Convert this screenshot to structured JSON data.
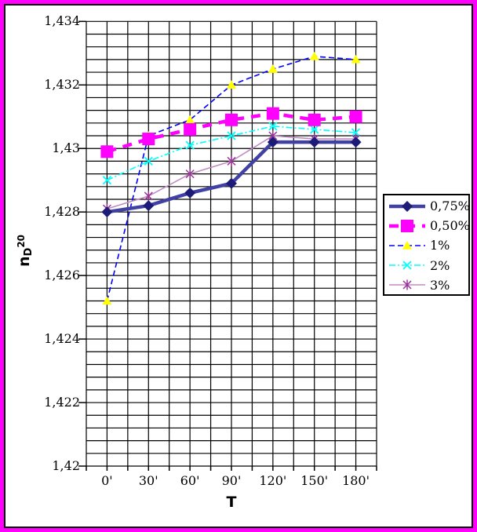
{
  "window": {
    "frame_color": "#FF00FF",
    "chart_background": "#FFFFFF",
    "chart_border_color": "#000000",
    "gridline_color": "#000000"
  },
  "y_axis": {
    "title": {
      "text": "nD20",
      "base": "n",
      "sub": "D",
      "sup": "20"
    },
    "tick_labels": [
      "1,434",
      "1,432",
      "1,43",
      "1,428",
      "1,426",
      "1,424",
      "1,422",
      "1,42"
    ]
  },
  "x_axis": {
    "title": "T",
    "tick_labels": [
      "0'",
      "30'",
      "60'",
      "90'",
      "120'",
      "150'",
      "180'"
    ]
  },
  "legend": {
    "position": "right",
    "entries": [
      "0,75%",
      "0,50%",
      "1%",
      "2%",
      "3%"
    ]
  },
  "chart_data": {
    "type": "line",
    "title": "",
    "xlabel": "T",
    "ylabel": "nD20",
    "categories": [
      "0'",
      "30'",
      "60'",
      "90'",
      "120'",
      "150'",
      "180'"
    ],
    "series": [
      {
        "name": "0,75%",
        "values": [
          1.428,
          1.4282,
          1.4286,
          1.4289,
          1.4302,
          1.4302,
          1.4302
        ],
        "color": "#4141A5",
        "marker_color": "#1C1C78",
        "marker": "diamond",
        "line": "solid-thick"
      },
      {
        "name": "0,50%",
        "values": [
          1.4299,
          1.4303,
          1.4306,
          1.4309,
          1.4311,
          1.4309,
          1.431
        ],
        "color": "#FF00FF",
        "marker_color": "#FF00FF",
        "marker": "square",
        "line": "dashed-thick"
      },
      {
        "name": "1%",
        "values": [
          1.4252,
          1.4304,
          1.4309,
          1.432,
          1.4325,
          1.4329,
          1.4328
        ],
        "color": "#0000FF",
        "marker_color": "#FFFF00",
        "marker": "triangle",
        "line": "dashed"
      },
      {
        "name": "2%",
        "values": [
          1.429,
          1.4296,
          1.4301,
          1.4304,
          1.4307,
          1.4306,
          1.4305
        ],
        "color": "#00FFFF",
        "marker_color": "#00FFFF",
        "marker": "x",
        "line": "dashdot"
      },
      {
        "name": "3%",
        "values": [
          1.4281,
          1.4285,
          1.4292,
          1.4296,
          1.4304,
          1.4303,
          1.4303
        ],
        "color": "#C08CC0",
        "marker_color": "#993399",
        "marker": "star",
        "line": "solid-thin"
      }
    ],
    "ylim": [
      1.42,
      1.434
    ],
    "y_major_unit": 0.002,
    "y_minor_unit": 0.0004,
    "grid": true,
    "legend_position": "right"
  }
}
